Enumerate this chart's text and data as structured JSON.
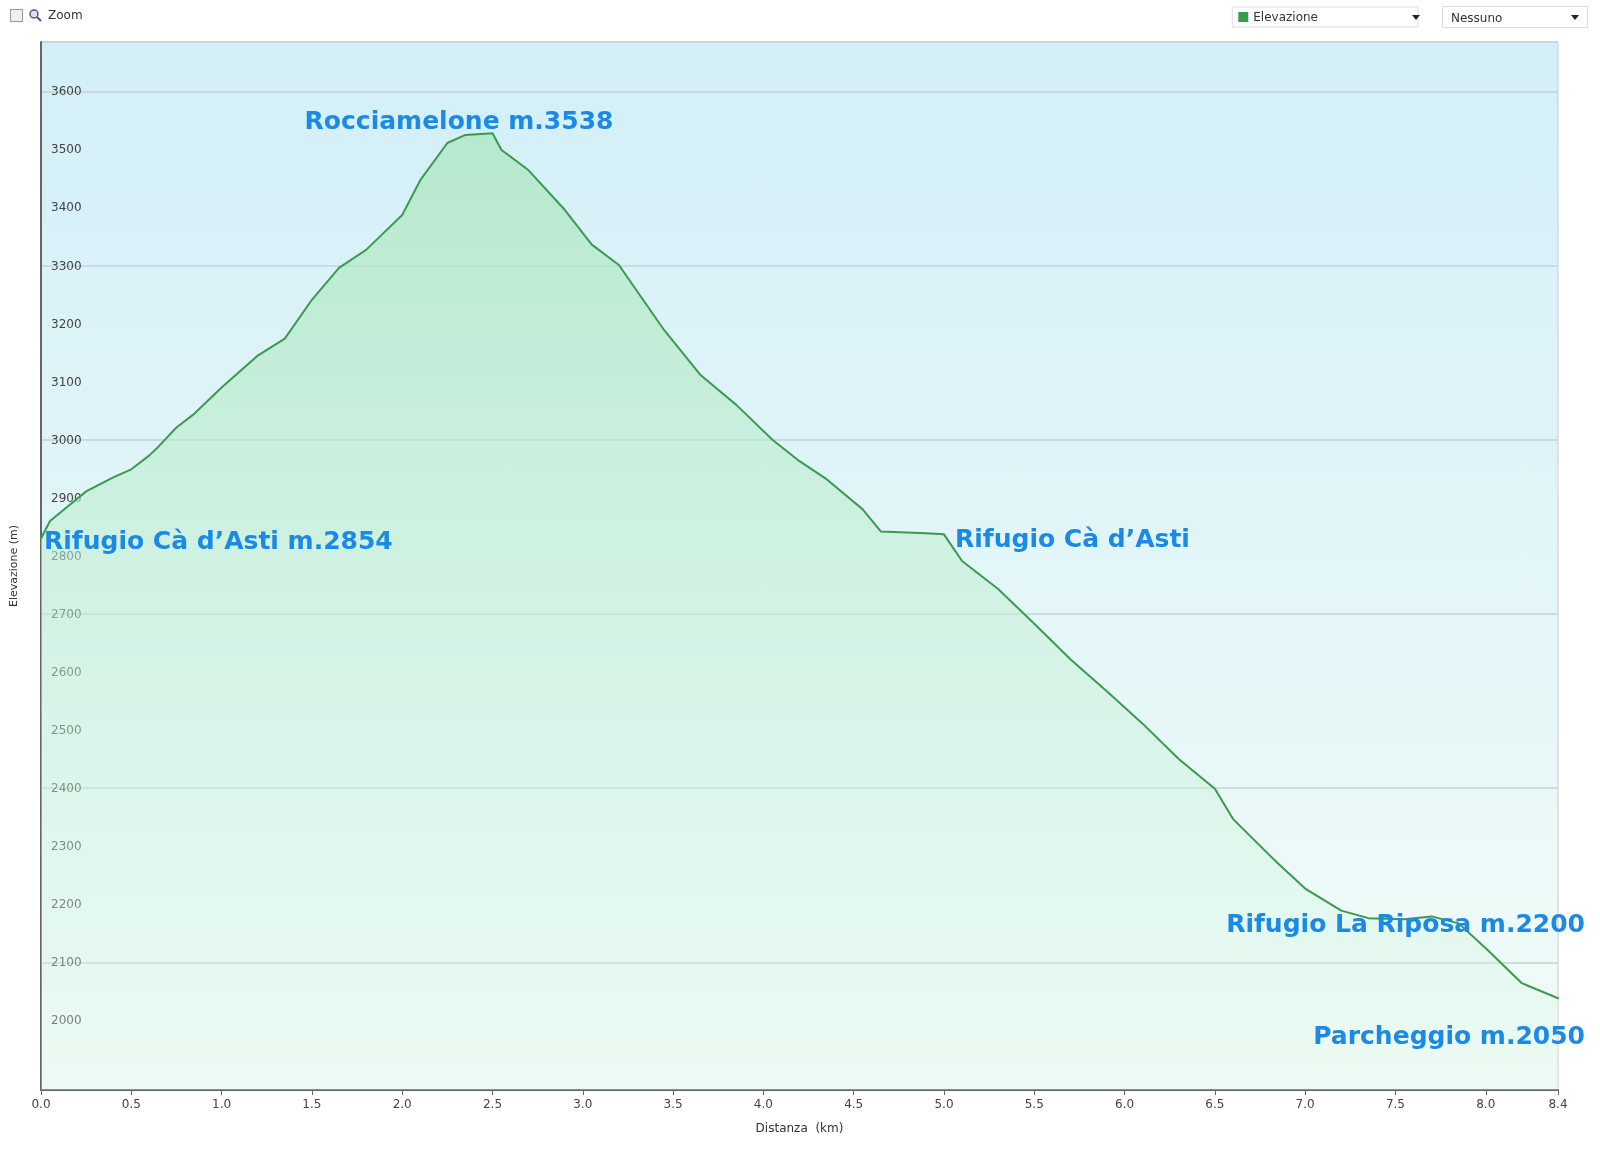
{
  "chart_data": {
    "type": "area",
    "xlabel": "Distanza  (km)",
    "ylabel": "Elevazione (m)",
    "x": [
      0,
      0.05,
      0.25,
      0.4,
      0.5,
      0.6,
      0.65,
      0.75,
      0.85,
      1.0,
      1.2,
      1.35,
      1.5,
      1.65,
      1.8,
      2.0,
      2.1,
      2.25,
      2.35,
      2.5,
      2.55,
      2.7,
      2.9,
      3.05,
      3.2,
      3.45,
      3.65,
      3.85,
      4.05,
      4.2,
      4.35,
      4.55,
      4.65,
      4.9,
      5.0,
      5.1,
      5.3,
      5.5,
      5.7,
      5.9,
      6.1,
      6.3,
      6.5,
      6.6,
      6.85,
      7.0,
      7.2,
      7.35,
      7.55,
      7.7,
      7.85,
      8.0,
      8.2,
      8.4
    ],
    "series": [
      {
        "name": "Elevazione",
        "color": "#3a9a4e",
        "values": [
          2830,
          2860,
          2911,
          2935,
          2949,
          2973,
          2988,
          3021,
          3045,
          3090,
          3145,
          3174,
          3241,
          3296,
          3327,
          3387,
          3447,
          3511,
          3525,
          3528,
          3499,
          3464,
          3396,
          3336,
          3301,
          3189,
          3112,
          3060,
          3000,
          2963,
          2932,
          2880,
          2842,
          2839,
          2837,
          2791,
          2743,
          2683,
          2622,
          2567,
          2511,
          2450,
          2399,
          2347,
          2270,
          2227,
          2189,
          2176,
          2174,
          2179,
          2167,
          2124,
          2064,
          2038
        ]
      }
    ],
    "xlim": [
      0,
      8.4
    ],
    "xticks": [
      {
        "value": 0,
        "label": "0.0"
      },
      0.5,
      {
        "value": 1,
        "label": "1.0"
      },
      1.5,
      {
        "value": 2,
        "label": "2.0"
      },
      2.5,
      {
        "value": 3,
        "label": "3.0"
      },
      3.5,
      {
        "value": 4,
        "label": "4.0"
      },
      4.5,
      {
        "value": 5,
        "label": "5.0"
      },
      5.5,
      {
        "value": 6,
        "label": "6.0"
      },
      6.5,
      {
        "value": 7,
        "label": "7.0"
      },
      7.5,
      {
        "value": 8,
        "label": "8.0"
      },
      8.4
    ],
    "ylim": [
      1880,
      3685
    ],
    "yticks": [
      2000,
      2100,
      2200,
      2300,
      2400,
      2500,
      2600,
      2700,
      2800,
      2900,
      3000,
      3100,
      3200,
      3300,
      3400,
      3500,
      3600
    ],
    "grid": "y",
    "legend": "top right",
    "marker": "none",
    "annotations": [
      "Zoom",
      "Nessuno",
      "Rocciamelone m.3538",
      "Rifugio Cà d’Asti m.2854",
      "Rifugio Cà d’Asti",
      "Rifugio La Riposa m.2200",
      "Parcheggio m.2050"
    ]
  }
}
